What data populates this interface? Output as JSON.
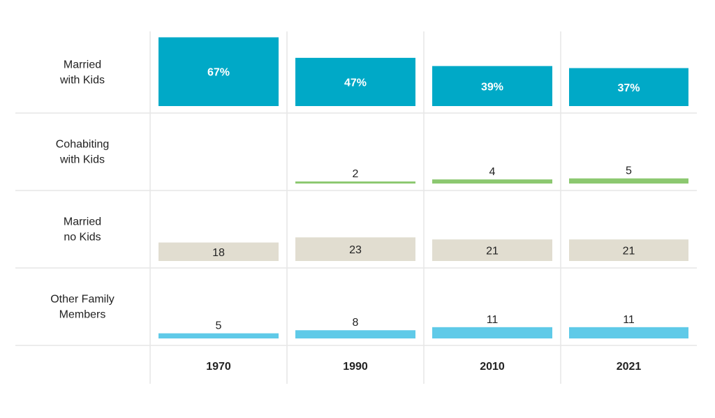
{
  "chart_data": {
    "type": "bar",
    "layout": "small-multiples grid (rows = household type, columns = year)",
    "categories": [
      "1970",
      "1990",
      "2010",
      "2021"
    ],
    "series": [
      {
        "name": "Married with Kids",
        "label_lines": [
          "Married",
          "with Kids"
        ],
        "values": [
          67,
          47,
          39,
          37
        ],
        "value_labels": [
          "67%",
          "47%",
          "39%",
          "37%"
        ],
        "color": "#00a9c7"
      },
      {
        "name": "Cohabiting with Kids",
        "label_lines": [
          "Cohabiting",
          "with Kids"
        ],
        "values": [
          0,
          2,
          4,
          5
        ],
        "value_labels": [
          "",
          "2",
          "4",
          "5"
        ],
        "color": "#8cc870"
      },
      {
        "name": "Married no Kids",
        "label_lines": [
          "Married",
          "no Kids"
        ],
        "values": [
          18,
          23,
          21,
          21
        ],
        "value_labels": [
          "18",
          "23",
          "21",
          "21"
        ],
        "color": "#e1ddd0"
      },
      {
        "name": "Other Family Members",
        "label_lines": [
          "Other Family",
          "Members"
        ],
        "values": [
          5,
          8,
          11,
          11
        ],
        "value_labels": [
          "5",
          "8",
          "11",
          "11"
        ],
        "color": "#5fcae8"
      }
    ],
    "ylim": [
      0,
      100
    ],
    "grid": true,
    "legend": "none"
  }
}
